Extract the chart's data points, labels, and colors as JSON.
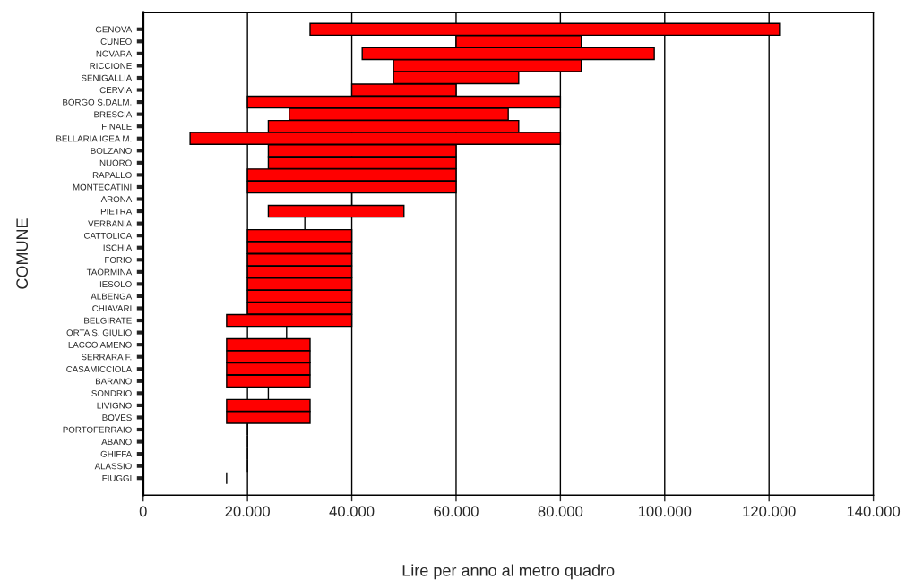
{
  "chart_data": {
    "type": "bar",
    "orientation": "horizontal",
    "xlabel": "Lire per anno al metro quadro",
    "ylabel": "COMUNE",
    "categories": [
      "GENOVA",
      "CUNEO",
      "NOVARA",
      "RICCIONE",
      "SENIGALLIA",
      "CERVIA",
      "BORGO S.DALM.",
      "BRESCIA",
      "FINALE",
      "BELLARIA IGEA M.",
      "BOLZANO",
      "NUORO",
      "RAPALLO",
      "MONTECATINI",
      "ARONA",
      "PIETRA",
      "VERBANIA",
      "CATTOLICA",
      "ISCHIA",
      "FORIO",
      "TAORMINA",
      "IESOLO",
      "ALBENGA",
      "CHIAVARI",
      "BELGIRATE",
      "ORTA S. GIULIO",
      "LACCO AMENO",
      "SERRARA F.",
      "CASAMICCIOLA",
      "BARANO",
      "SONDRIO",
      "LIVIGNO",
      "BOVES",
      "PORTOFERRAIO",
      "ABANO",
      "GHIFFA",
      "ALASSIO",
      "FIUGGI"
    ],
    "base": [
      32000,
      60000,
      42000,
      48000,
      48000,
      40000,
      20000,
      28000,
      24000,
      9000,
      24000,
      24000,
      20000,
      20000,
      40000,
      24000,
      31000,
      20000,
      20000,
      20000,
      20000,
      20000,
      20000,
      20000,
      16000,
      27500,
      16000,
      16000,
      16000,
      16000,
      24000,
      16000,
      16000,
      20000,
      20000,
      20000,
      20000,
      16000
    ],
    "values": [
      90000,
      24000,
      56000,
      36000,
      24000,
      20000,
      60000,
      42000,
      48000,
      71000,
      36000,
      36000,
      40000,
      40000,
      0,
      26000,
      0,
      20000,
      20000,
      20000,
      20000,
      20000,
      20000,
      20000,
      24000,
      0,
      16000,
      16000,
      16000,
      16000,
      0,
      16000,
      16000,
      0,
      0,
      0,
      0,
      0
    ],
    "colors": [
      "#ff0000",
      "#ff0000",
      "#ff0000",
      "#ff0000",
      "#ff0000",
      "#ff0000",
      "#ff0000",
      "#ff0000",
      "#ff0000",
      "#ff0000",
      "#ff0000",
      "#ff0000",
      "#ff0000",
      "#ff0000",
      "#000000",
      "#ff0000",
      "#000000",
      "#ff0000",
      "#ff0000",
      "#ff0000",
      "#ff0000",
      "#ff0000",
      "#ff0000",
      "#ff0000",
      "#ff0000",
      "#000000",
      "#ff0000",
      "#ff0000",
      "#ff0000",
      "#ff0000",
      "#000000",
      "#ff0000",
      "#ff0000",
      "#000000",
      "#000000",
      "#000000",
      "#000000",
      "#000000"
    ],
    "xlim": [
      0,
      140000
    ],
    "xticks": [
      0,
      {
        "value": 20000,
        "label": "20.000"
      },
      {
        "value": 40000,
        "label": "40.000"
      },
      {
        "value": 60000,
        "label": "60.000"
      },
      {
        "value": 80000,
        "label": "80.000"
      },
      {
        "value": 100000,
        "label": "100.000"
      },
      {
        "value": 120000,
        "label": "120.000"
      },
      {
        "value": 140000,
        "label": "140.000"
      }
    ],
    "grid": "x"
  }
}
